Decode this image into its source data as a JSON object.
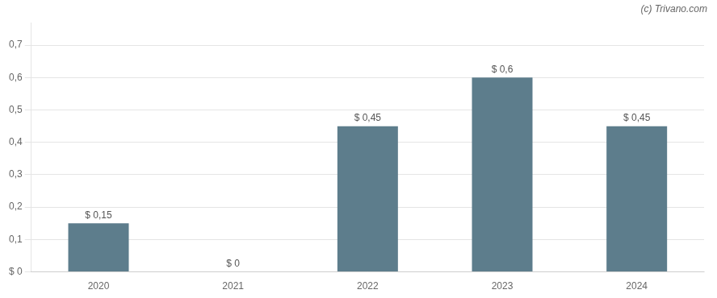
{
  "chart_data": {
    "type": "bar",
    "annotation": "(c) Trivano.com",
    "categories": [
      "2020",
      "2021",
      "2022",
      "2023",
      "2024"
    ],
    "values": [
      0.15,
      0.0,
      0.45,
      0.6,
      0.45
    ],
    "value_labels": [
      "$ 0,15",
      "$ 0",
      "$ 0,45",
      "$ 0,6",
      "$ 0,45"
    ],
    "data_labels": true,
    "color": "#5d7d8c",
    "ylim": [
      0,
      0.77
    ],
    "yticks": [
      {
        "value": 0.0,
        "label": "$ 0"
      },
      {
        "value": 0.1,
        "label": "0,1"
      },
      {
        "value": 0.2,
        "label": "0,2"
      },
      {
        "value": 0.3,
        "label": "0,3"
      },
      {
        "value": 0.4,
        "label": "0,4"
      },
      {
        "value": 0.5,
        "label": "0,5"
      },
      {
        "value": 0.6,
        "label": "0,6"
      },
      {
        "value": 0.7,
        "label": "0,7"
      }
    ],
    "grid": true
  }
}
